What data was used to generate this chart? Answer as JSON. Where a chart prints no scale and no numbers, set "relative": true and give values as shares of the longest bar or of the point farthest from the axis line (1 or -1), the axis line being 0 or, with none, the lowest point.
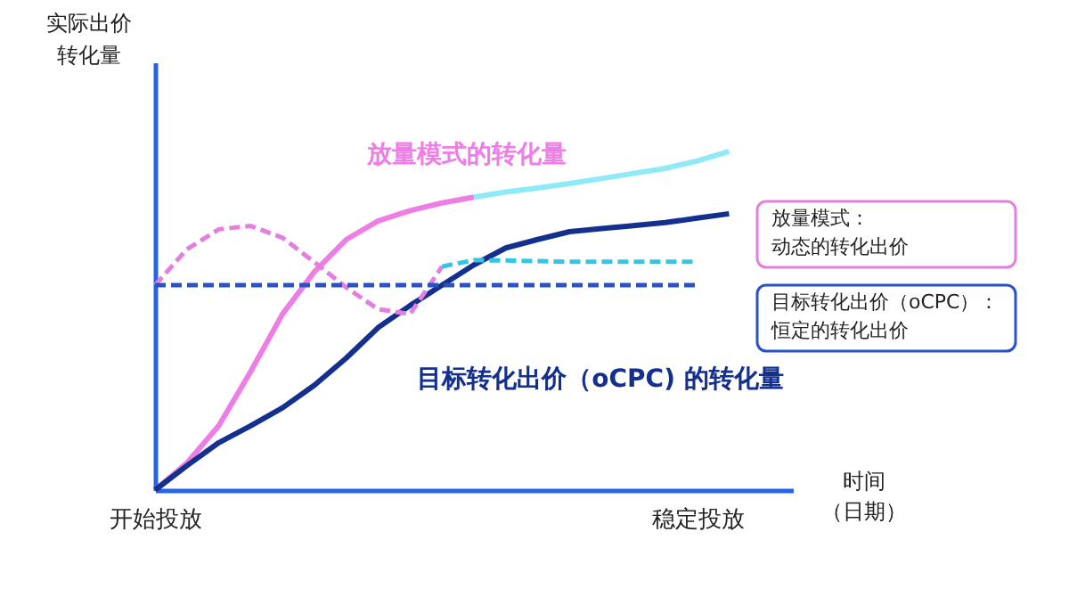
{
  "chart_data": {
    "type": "line",
    "relative": true,
    "xlabel": "时间（日期）",
    "ylabel": "实际出价转化量",
    "categories": [
      "开始投放",
      null,
      null,
      null,
      null,
      null,
      null,
      null,
      null,
      null,
      null,
      null,
      null,
      null,
      null,
      null,
      null,
      "稳定投放",
      null,
      null,
      null
    ],
    "tick_labels": "x",
    "grid": false,
    "series": [
      {
        "name": "放量模式的转化量",
        "color": "#ee7ee6",
        "line_style": "solid",
        "values": [
          0,
          0.08,
          0.19,
          0.35,
          0.52,
          0.645,
          0.74,
          0.795,
          0.825,
          0.848,
          0.865,
          null,
          null,
          null,
          null,
          null,
          null,
          null,
          null,
          null,
          null
        ]
      },
      {
        "color": "#8eeaf6",
        "line_style": "solid",
        "values": [
          null,
          null,
          null,
          null,
          null,
          null,
          null,
          null,
          null,
          null,
          0.865,
          0.88,
          0.892,
          0.905,
          0.92,
          0.935,
          0.95,
          0.972,
          1.0,
          null,
          null
        ]
      },
      {
        "name": "目标转化出价（oCPC) 的转化量",
        "color": "#14308f",
        "line_style": "solid",
        "values": [
          0,
          0.072,
          0.14,
          0.19,
          0.243,
          0.31,
          0.39,
          0.48,
          0.545,
          0.605,
          0.665,
          0.715,
          0.74,
          0.763,
          0.772,
          0.781,
          0.79,
          0.803,
          0.816,
          null,
          null
        ]
      },
      {
        "name": "放量模式：动态的转化出价",
        "color": "#e47fe0",
        "line_style": "dashed",
        "values": [
          0.605,
          0.711,
          0.77,
          0.78,
          0.745,
          0.673,
          0.598,
          0.534,
          0.52,
          0.66,
          null,
          null,
          null,
          null,
          null,
          null,
          null,
          null,
          null,
          null,
          null
        ]
      },
      {
        "color": "#33c6e2",
        "line_style": "dashed",
        "values": [
          null,
          null,
          null,
          null,
          null,
          null,
          null,
          null,
          null,
          0.66,
          0.679,
          0.678,
          0.676,
          0.674,
          0.674,
          0.674,
          0.674,
          0.674,
          null,
          null,
          null
        ]
      },
      {
        "name": "目标转化出价（oCPC）：恒定的转化出价",
        "color": "#2a52c4",
        "line_style": "dashed",
        "values": [
          0.605,
          0.605,
          0.605,
          0.605,
          0.605,
          0.605,
          0.605,
          0.605,
          0.605,
          0.605,
          0.605,
          0.605,
          0.605,
          0.605,
          0.605,
          0.605,
          0.605,
          0.605,
          null,
          null,
          null
        ]
      }
    ]
  }
}
